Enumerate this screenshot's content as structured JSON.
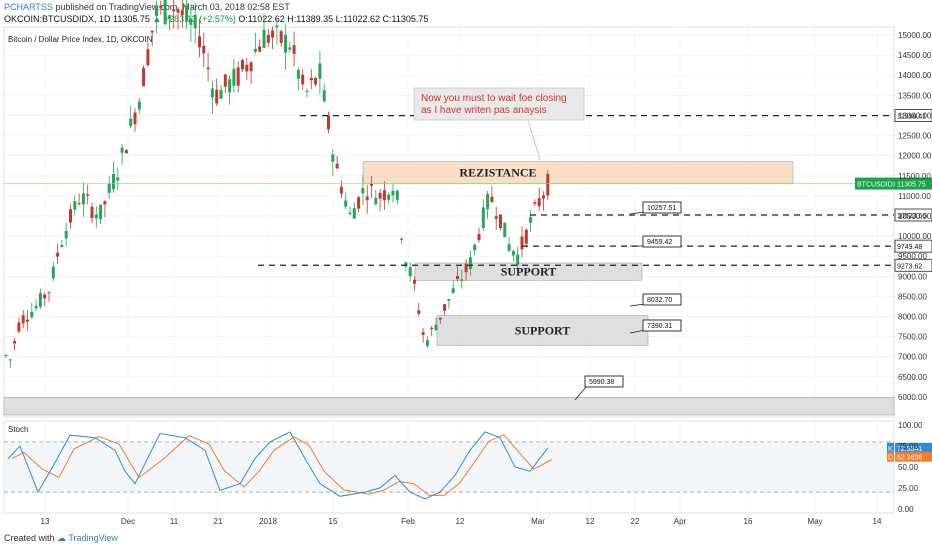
{
  "header": {
    "author": "PCHARTSS",
    "published": "published on TradingView.com, March 03, 2018 02:58 EST",
    "symbol": "OKCOIN:BTCUSDIDX, 1D",
    "price": "11305.75",
    "change": "▲ +283.13 (+2.57%)",
    "ohlc": "O:11022.62 H:11389.35 L:11022.62 C:11305.75"
  },
  "footer": {
    "created_with": "Created with",
    "brand": "TradingView"
  },
  "colors": {
    "up": "#26a65b",
    "down": "#c0392b",
    "k_line": "#2e8bd6",
    "d_line": "#f07c2c",
    "zone": "#f9dcc0",
    "support": "#dcdcdc"
  },
  "chart_data": [
    {
      "type": "candlestick",
      "title": "Bitcoin / Dollar Price Index, 1D, OKCOIN",
      "ylim": [
        5500,
        15200
      ],
      "y_ticks": [
        "15000.00",
        "14500.00",
        "14000.00",
        "13500.00",
        "13000.00",
        "12500.00",
        "12000.00",
        "11500.00",
        "11000.00",
        "10500.00",
        "10000.00",
        "9500.00",
        "9000.00",
        "8500.00",
        "8000.00",
        "7500.00",
        "7000.00",
        "6500.00",
        "6000.00"
      ],
      "x_ticks": [
        "13",
        "Dec",
        "11",
        "21",
        "2018",
        "15",
        "Feb",
        "12",
        "Mar",
        "12",
        "22",
        "Apr",
        "16",
        "May",
        "14"
      ],
      "last_price_tag": {
        "symbol": "BTCUSDIDX",
        "value": "11305.75"
      },
      "levels": [
        {
          "value": 12996.41,
          "label": "12996.41"
        },
        {
          "value": 10523.66,
          "label": "10523.66"
        },
        {
          "value": 9749.48,
          "label": "9749.48"
        },
        {
          "value": 9273.62,
          "label": "9273.62"
        }
      ],
      "callouts": [
        "10257.51",
        "9459.42",
        "8032.70",
        "7390.31",
        "5990.38"
      ],
      "zones": [
        {
          "label": "REZISTANCE",
          "from": 11300,
          "to": 11850
        },
        {
          "label": "SUPPORT",
          "from": 8900,
          "to": 9330
        },
        {
          "label": "SUPPORT",
          "from": 7280,
          "to": 8020
        },
        {
          "label": "",
          "from": 5550,
          "to": 5990
        }
      ],
      "annotation": [
        "Now you must to wait foe closing",
        "as I have writen pas anaysis"
      ]
    },
    {
      "type": "line",
      "title": "Stoch",
      "ylim": [
        -5,
        105
      ],
      "y_ticks": [
        "100.00",
        "75.00",
        "50.00",
        "25.00",
        "0.00"
      ],
      "series": [
        {
          "name": "K",
          "value": "72.9841"
        },
        {
          "name": "D",
          "value": "62.3636"
        }
      ]
    }
  ]
}
